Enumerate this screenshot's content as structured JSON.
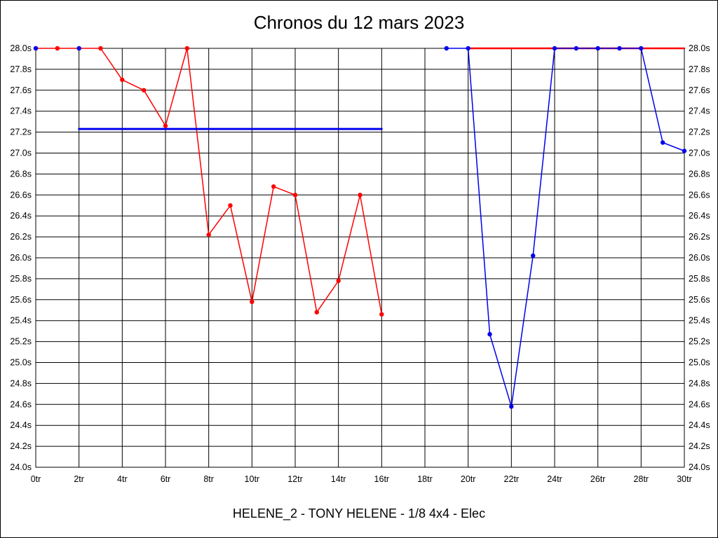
{
  "title": "Chronos du 12 mars 2023",
  "subtitle": "HELENE_2 - TONY HELENE - 1/8 4x4 - Elec",
  "colors": {
    "red": "#ff0000",
    "blue": "#0000ee",
    "grid": "#000000",
    "text": "#000000",
    "background": "#ffffff"
  },
  "chart_data": {
    "type": "line",
    "title": "Chronos du 12 mars 2023",
    "xlabel": "",
    "ylabel": "",
    "x_axis": {
      "min": 0,
      "max": 30,
      "tick_step": 2,
      "unit": "tr",
      "tick_labels": [
        "0tr",
        "2tr",
        "4tr",
        "6tr",
        "8tr",
        "10tr",
        "12tr",
        "14tr",
        "16tr",
        "18tr",
        "20tr",
        "22tr",
        "24tr",
        "26tr",
        "28tr",
        "30tr"
      ]
    },
    "y_axis": {
      "min": 24.0,
      "max": 28.0,
      "tick_step": 0.2,
      "unit": "s",
      "shown_on": "both-sides",
      "tick_labels": [
        "28.0s",
        "27.8s",
        "27.6s",
        "27.4s",
        "27.2s",
        "27.0s",
        "26.8s",
        "26.6s",
        "26.4s",
        "26.2s",
        "26.0s",
        "25.8s",
        "25.6s",
        "25.4s",
        "25.2s",
        "25.0s",
        "24.8s",
        "24.6s",
        "24.4s",
        "24.2s",
        "24.0s"
      ]
    },
    "grid": true,
    "legend": "none",
    "series": [
      {
        "name": "red-run-1",
        "color": "red",
        "line": true,
        "markers": true,
        "line_width": 1.5,
        "points": [
          [
            0,
            28.0
          ],
          [
            1,
            28.0
          ],
          [
            2,
            28.0
          ],
          [
            3,
            28.0
          ],
          [
            4,
            27.7
          ],
          [
            5,
            27.6
          ],
          [
            6,
            27.26
          ],
          [
            7,
            28.0
          ],
          [
            8,
            26.22
          ],
          [
            9,
            26.5
          ],
          [
            10,
            25.58
          ],
          [
            11,
            26.68
          ],
          [
            12,
            26.6
          ],
          [
            13,
            25.48
          ],
          [
            14,
            25.78
          ],
          [
            15,
            26.6
          ],
          [
            16,
            25.46
          ]
        ]
      },
      {
        "name": "red-run-2-clipped-28",
        "color": "red",
        "line": true,
        "markers": false,
        "line_width": 2.5,
        "points": [
          [
            20,
            28.0
          ],
          [
            30,
            28.0
          ]
        ]
      },
      {
        "name": "blue-reference-line",
        "color": "blue",
        "line": true,
        "markers": false,
        "line_width": 3,
        "points": [
          [
            2,
            27.23
          ],
          [
            16,
            27.23
          ]
        ]
      },
      {
        "name": "blue-left-markers",
        "color": "blue",
        "line": false,
        "markers": true,
        "line_width": 1.5,
        "points": [
          [
            0,
            28.0
          ],
          [
            2,
            28.0
          ]
        ]
      },
      {
        "name": "blue-run-2",
        "color": "blue",
        "line": true,
        "markers": true,
        "line_width": 1.5,
        "points": [
          [
            19,
            28.0
          ],
          [
            20,
            28.0
          ],
          [
            21,
            25.27
          ],
          [
            22,
            24.58
          ],
          [
            23,
            26.02
          ],
          [
            24,
            28.0
          ],
          [
            25,
            28.0
          ],
          [
            26,
            28.0
          ],
          [
            27,
            28.0
          ],
          [
            28,
            28.0
          ],
          [
            29,
            27.1
          ],
          [
            30,
            27.02
          ]
        ]
      }
    ]
  }
}
